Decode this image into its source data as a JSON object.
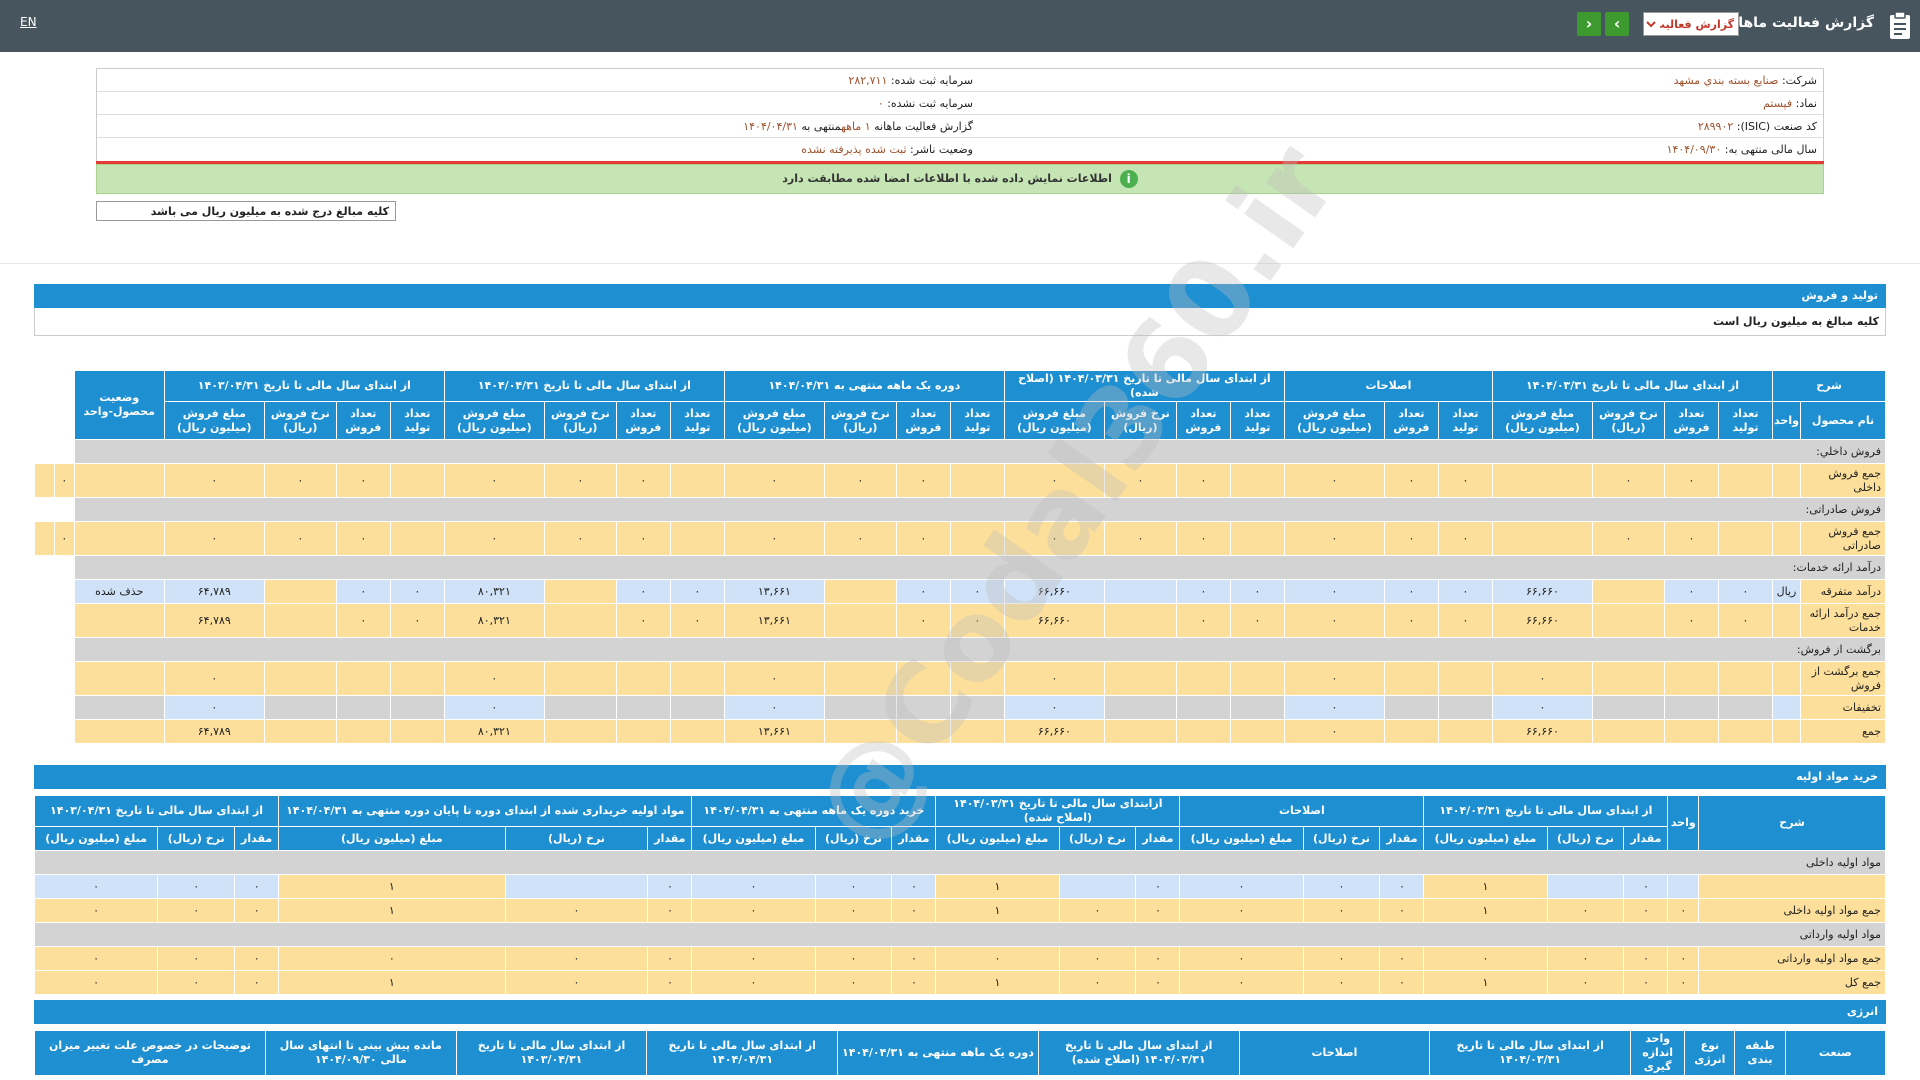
{
  "topbar": {
    "title": "گزارش فعالیت ماهانه",
    "report_type": "گزارش فعالیت",
    "lang": "EN"
  },
  "info": {
    "company_label": "شرکت:",
    "company": "صنایع بسته بندي مشهد",
    "capital_reg_label": "سرمایه ثبت شده:",
    "capital_reg": "۲۸۲,۷۱۱",
    "symbol_label": "نماد:",
    "symbol": "فپستم",
    "capital_unreg_label": "سرمایه ثبت نشده:",
    "capital_unreg": "۰",
    "isic_label": "کد صنعت (ISIC):",
    "isic": "۲۸۹۹۰۲",
    "period_label": "گزارش فعالیت ماهانه",
    "period": "۱ ماهه",
    "period_end_label": "منتهی به",
    "period_end": "۱۴۰۴/۰۴/۳۱",
    "fiscal_label": "سال مالی منتهی به:",
    "fiscal": "۱۴۰۴/۰۹/۳۰",
    "status_label": "وضعیت ناشر:",
    "status": "ثبت شده پذیرفته نشده"
  },
  "match_message": "اطلاعات نمایش داده شده با اطلاعات امضا شده مطابقت دارد",
  "amounts_note": "کلیه مبالغ درج شده به میلیون ریال می باشد",
  "watermark": "@Codal360.ir",
  "production": {
    "title": "تولید و فروش",
    "note": "کلیه مبالغ به میلیون ریال است",
    "h_desc": "شرح",
    "h_product": "نام محصول",
    "h_unit": "واحد",
    "groups": [
      "از ابتدای سال مالی تا تاریخ ۱۴۰۴/۰۳/۳۱",
      "اصلاحات",
      "از ابتدای سال مالی تا تاریخ ۱۴۰۴/۰۳/۳۱ (اصلاح شده)",
      "دوره یک ماهه منتهی به ۱۴۰۴/۰۴/۳۱",
      "از ابتدای سال مالی تا تاریخ ۱۴۰۴/۰۴/۳۱",
      "از ابتدای سال مالی تا تاریخ ۱۴۰۳/۰۴/۳۱"
    ],
    "h_status": "وضعیت محصول-واحد",
    "sub": [
      "تعداد تولید",
      "تعداد فروش",
      "نرخ فروش (ریال)",
      "مبلغ فروش (میلیون ریال)"
    ],
    "sub_adj": [
      "تعداد تولید",
      "تعداد فروش",
      "مبلغ فروش (میلیون ریال)"
    ],
    "rows": [
      {
        "t": "g",
        "label": "فروش داخلي:"
      },
      {
        "t": "y",
        "label": "جمع فروش داخلی",
        "cells": [
          "",
          "",
          "٠",
          "٠",
          "",
          "٠",
          "٠",
          "٠",
          "",
          "٠",
          "٠",
          "٠",
          "",
          "٠",
          "٠",
          "٠",
          "",
          "٠",
          "٠",
          "٠",
          "",
          "٠",
          "٠",
          "٠",
          "",
          "٠",
          ""
        ]
      },
      {
        "t": "g",
        "label": "فروش صادراتی:"
      },
      {
        "t": "y",
        "label": "جمع فروش صادراتی",
        "cells": [
          "",
          "",
          "٠",
          "٠",
          "",
          "٠",
          "٠",
          "٠",
          "",
          "٠",
          "٠",
          "٠",
          "",
          "٠",
          "٠",
          "٠",
          "",
          "٠",
          "٠",
          "٠",
          "",
          "٠",
          "٠",
          "٠",
          "",
          "٠",
          ""
        ]
      },
      {
        "t": "g",
        "label": "درآمد ارائه خدمات:"
      },
      {
        "t": "m",
        "label": "درآمد متفرقه",
        "cells": [
          "ریال",
          "٠",
          "٠",
          "",
          "۶۶,۶۶۰",
          "٠",
          "٠",
          "٠",
          "٠",
          "٠",
          "",
          "۶۶,۶۶۰",
          "٠",
          "٠",
          "",
          "۱۳,۶۶۱",
          "٠",
          "٠",
          "",
          "۸۰,۳۲۱",
          "٠",
          "٠",
          "",
          "۶۴,۷۸۹",
          "حذف شده"
        ]
      },
      {
        "t": "y",
        "label": "جمع درآمد ارائه خدمات",
        "cells": [
          "",
          "٠",
          "٠",
          "",
          "۶۶,۶۶۰",
          "٠",
          "٠",
          "٠",
          "٠",
          "٠",
          "",
          "۶۶,۶۶۰",
          "٠",
          "٠",
          "",
          "۱۳,۶۶۱",
          "٠",
          "٠",
          "",
          "۸۰,۳۲۱",
          "٠",
          "٠",
          "",
          "۶۴,۷۸۹",
          ""
        ]
      },
      {
        "t": "g",
        "label": "برگشت از فروش:"
      },
      {
        "t": "y",
        "label": "جمع برگشت از فروش",
        "cells": [
          "",
          "",
          "",
          "",
          "٠",
          "",
          "",
          "٠",
          "",
          "",
          "",
          "٠",
          "",
          "",
          "",
          "٠",
          "",
          "",
          "",
          "٠",
          "",
          "",
          "",
          "٠",
          ""
        ]
      },
      {
        "t": "d",
        "label": "تخفیفات",
        "cells": [
          "",
          "",
          "",
          "",
          "٠",
          "",
          "",
          "٠",
          "",
          "",
          "",
          "٠",
          "",
          "",
          "",
          "٠",
          "",
          "",
          "",
          "٠",
          "",
          "",
          "",
          "٠",
          ""
        ]
      },
      {
        "t": "y",
        "label": "جمع",
        "cells": [
          "",
          "",
          "",
          "",
          "۶۶,۶۶۰",
          "",
          "",
          "٠",
          "",
          "",
          "",
          "۶۶,۶۶۰",
          "",
          "",
          "",
          "۱۳,۶۶۱",
          "",
          "",
          "",
          "۸۰,۳۲۱",
          "",
          "",
          "",
          "۶۴,۷۸۹",
          ""
        ]
      }
    ]
  },
  "materials": {
    "title": "خرید مواد اولیه",
    "h_desc": "شرح",
    "h_unit": "واحد",
    "groups": [
      "از ابتدای سال مالی تا تاریخ ۱۴۰۴/۰۳/۳۱",
      "اصلاحات",
      "ازابتدای سال مالی تا تاریخ ۱۴۰۴/۰۳/۳۱ (اصلاح شده)",
      "خرید دوره یک ماهه منتهی به ۱۴۰۴/۰۴/۳۱",
      "مواد اولیه خریداری شده از ابتدای دوره تا پایان دوره منتهی به ۱۴۰۴/۰۴/۳۱",
      "از ابتدای سال مالی تا تاریخ ۱۴۰۳/۰۴/۳۱"
    ],
    "sub": [
      "مقدار",
      "نرخ (ریال)",
      "مبلغ (میلیون ریال)"
    ],
    "rows": [
      {
        "t": "g",
        "label": "مواد اولیه داخلی"
      },
      {
        "t": "b",
        "label": "",
        "cells": [
          "",
          "٠",
          "",
          "۱",
          "٠",
          "٠",
          "٠",
          "٠",
          "",
          "۱",
          "٠",
          "٠",
          "٠",
          "٠",
          "",
          "۱",
          "٠",
          "٠",
          "٠"
        ]
      },
      {
        "t": "y",
        "label": "جمع مواد اولیه داخلی",
        "cells": [
          "٠",
          "٠",
          "٠",
          "۱",
          "٠",
          "٠",
          "٠",
          "٠",
          "٠",
          "۱",
          "٠",
          "٠",
          "٠",
          "٠",
          "٠",
          "۱",
          "٠",
          "٠",
          "٠"
        ]
      },
      {
        "t": "g",
        "label": "مواد اولیه وارداتی"
      },
      {
        "t": "y",
        "label": "جمع مواد اولیه وارداتی",
        "cells": [
          "٠",
          "٠",
          "٠",
          "٠",
          "٠",
          "٠",
          "٠",
          "٠",
          "٠",
          "٠",
          "٠",
          "٠",
          "٠",
          "٠",
          "٠",
          "٠",
          "٠",
          "٠",
          "٠"
        ]
      },
      {
        "t": "y",
        "label": "جمع کل",
        "cells": [
          "٠",
          "٠",
          "٠",
          "۱",
          "٠",
          "٠",
          "٠",
          "٠",
          "٠",
          "۱",
          "٠",
          "٠",
          "٠",
          "٠",
          "٠",
          "۱",
          "٠",
          "٠",
          "٠"
        ]
      }
    ]
  },
  "energy": {
    "title": "انرژی",
    "headers": [
      "صنعت",
      "طبقه بندی",
      "نوع انرژی",
      "واحد اندازه گیری",
      "از ابتدای سال مالی تا تاریخ ۱۴۰۴/۰۳/۳۱",
      "اصلاحات",
      "از ابتدای سال مالی تا تاریخ ۱۴۰۴/۰۳/۳۱ (اصلاح شده)",
      "دوره یک ماهه منتهی به ۱۴۰۴/۰۴/۳۱",
      "از ابتدای سال مالی تا تاریخ ۱۴۰۴/۰۴/۳۱",
      "از ابتدای سال مالی تا تاریخ ۱۴۰۳/۰۴/۳۱",
      "مانده پیش بینی تا انتهای سال مالی ۱۴۰۴/۰۹/۳۰",
      "توضیحات در خصوص علت تغییر میزان مصرف"
    ]
  }
}
